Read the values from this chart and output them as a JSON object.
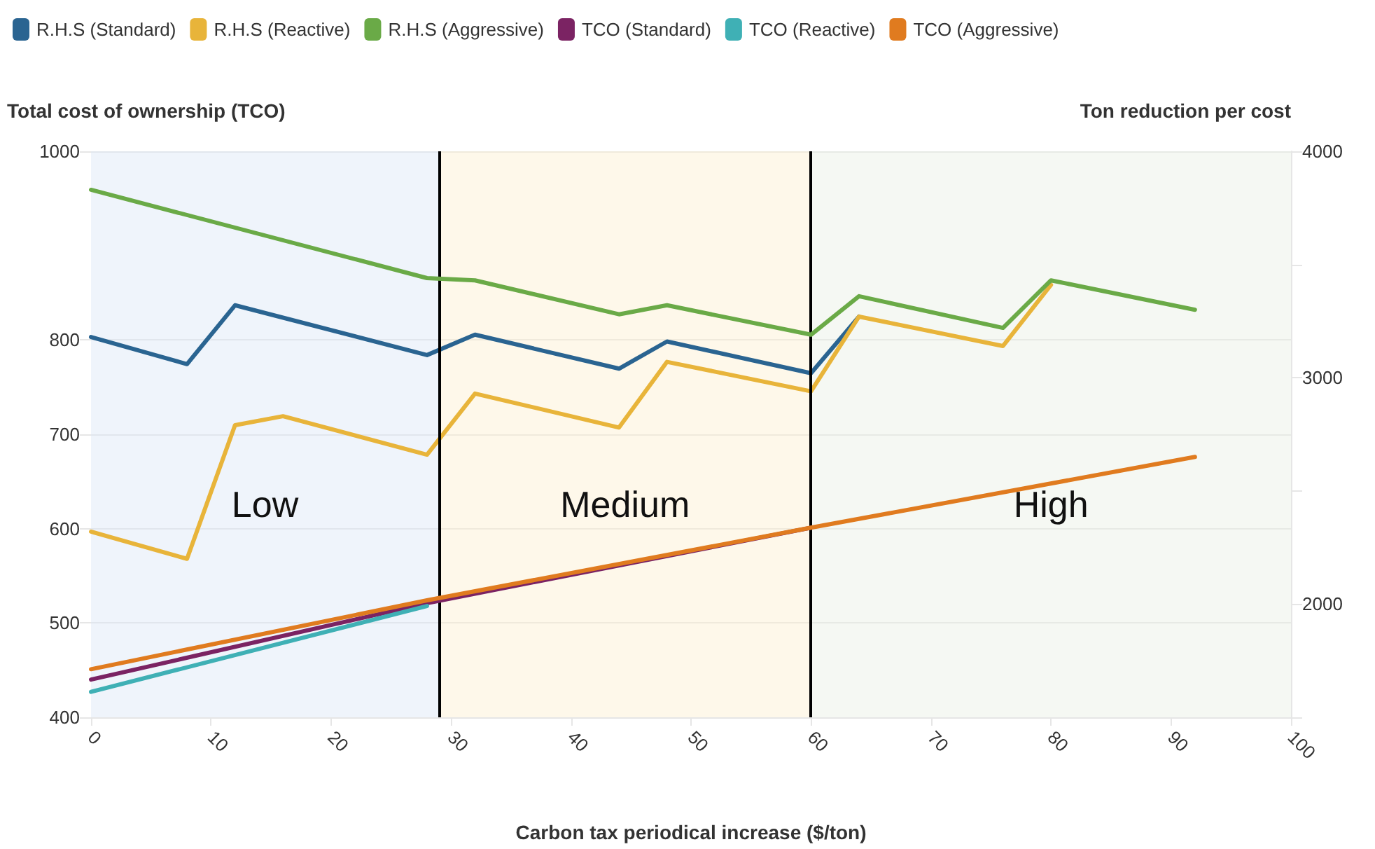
{
  "chart_data": {
    "type": "line",
    "xlabel": "Carbon tax periodical increase ($/ton)",
    "ylabel": "Total cost of ownership (TCO)",
    "y2label": "Ton reduction per cost",
    "series": [
      {
        "name": "R.H.S (Standard)",
        "color": "#2a6491",
        "axis": "y2",
        "x": [
          0,
          8,
          12,
          28,
          32,
          44,
          48,
          60,
          64
        ],
        "values": [
          3180,
          3060,
          3320,
          3100,
          3190,
          3040,
          3160,
          3020,
          3270
        ]
      },
      {
        "name": "R.H.S (Reactive)",
        "color": "#e8b43a",
        "axis": "y2",
        "x": [
          0,
          8,
          12,
          16,
          28,
          32,
          44,
          48,
          60,
          64,
          76,
          80
        ],
        "values": [
          2320,
          2200,
          2790,
          2830,
          2660,
          2930,
          2780,
          3070,
          2940,
          3270,
          3140,
          3410
        ]
      },
      {
        "name": "R.H.S (Aggressive)",
        "color": "#6aaa47",
        "axis": "y2",
        "x": [
          0,
          28,
          32,
          44,
          48,
          60,
          64,
          76,
          80,
          92
        ],
        "values": [
          3830,
          3440,
          3430,
          3280,
          3320,
          3190,
          3360,
          3220,
          3430,
          3300
        ]
      },
      {
        "name": "TCO (Standard)",
        "color": "#7b2363",
        "x": [
          0,
          28,
          60
        ],
        "values": [
          440,
          521,
          601
        ]
      },
      {
        "name": "TCO (Reactive)",
        "color": "#3fb0b5",
        "x": [
          0,
          28
        ],
        "values": [
          427,
          518
        ]
      },
      {
        "name": "TCO (Aggressive)",
        "color": "#e07b1f",
        "x": [
          0,
          28,
          60,
          92
        ],
        "values": [
          451,
          524,
          601,
          676
        ]
      }
    ],
    "xlim": [
      0,
      100
    ],
    "xticks": [
      0,
      10,
      20,
      30,
      40,
      50,
      60,
      70,
      80,
      90,
      100
    ],
    "ylim": [
      400,
      1000
    ],
    "yticks": [
      400,
      500,
      600,
      700,
      800,
      1000
    ],
    "y2lim": [
      1500,
      4000
    ],
    "y2ticks": [
      {
        "value": 1500,
        "label": null
      },
      2000,
      {
        "value": 2500,
        "label": null
      },
      3000,
      {
        "value": 3500,
        "label": null
      },
      4000
    ],
    "bands": [
      {
        "axis": "x",
        "from": 0,
        "to": 29,
        "label": "Low",
        "color": "#eaf0fa"
      },
      {
        "axis": "x",
        "from": 29,
        "to": 60,
        "label": "Medium",
        "color": "#fdf6e3"
      },
      {
        "axis": "x",
        "from": 60,
        "to": 100,
        "label": "High",
        "color": "#f2f6ef"
      }
    ],
    "ref_lines": [
      {
        "axis": "x",
        "value": 29,
        "color": "#000000"
      },
      {
        "axis": "x",
        "value": 60,
        "color": "#000000"
      }
    ],
    "grid": "y",
    "legend": "top left",
    "marker": "none",
    "line_style": "solid"
  }
}
